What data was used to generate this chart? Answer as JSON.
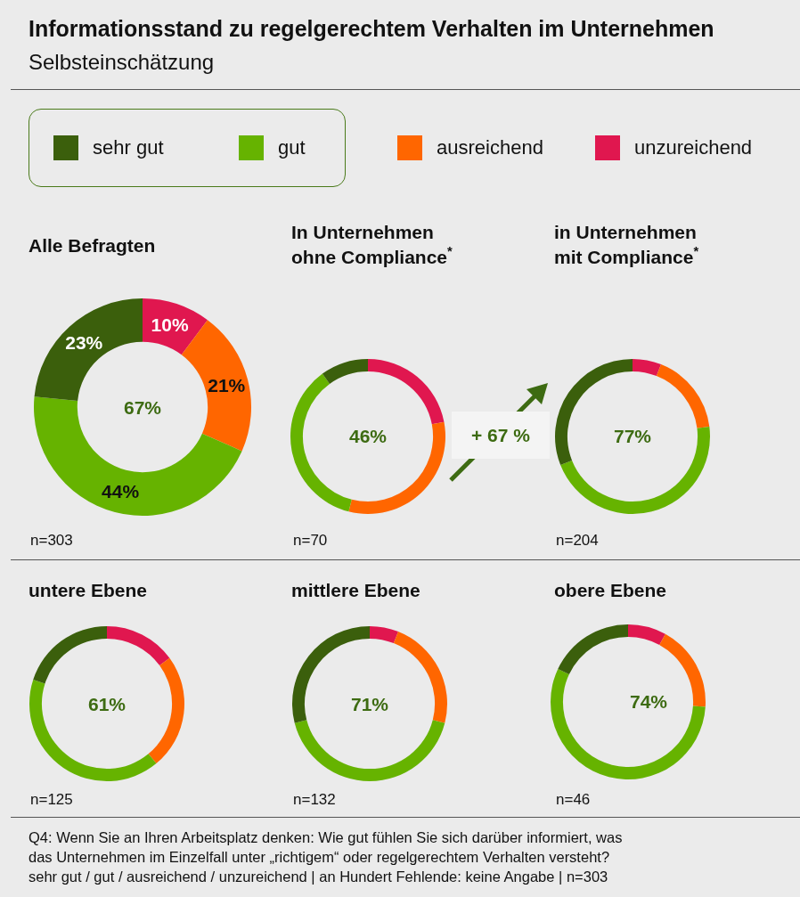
{
  "chart_data": [
    {
      "type": "donut",
      "title": "Alle Befragten",
      "categories": [
        "sehr gut",
        "gut",
        "ausreichend",
        "unzureichend"
      ],
      "values": [
        23,
        44,
        21,
        10
      ],
      "colors": [
        "#3b5f0c",
        "#66b300",
        "#ff6600",
        "#e0174f"
      ],
      "value_labels": [
        "23%",
        "44%",
        "21%",
        "10%"
      ],
      "legend": "top",
      "annotations": [
        "67%",
        "n=303",
        "Informationsstand zu regelgerechtem Verhalten im Unternehmen",
        "Selbsteinschätzung"
      ]
    },
    {
      "type": "donut",
      "title": "In Unternehmen\nohne Compliance$^{*}$",
      "categories": [
        null,
        null,
        null,
        null
      ],
      "values": [
        10,
        36,
        32,
        22
      ],
      "colors": [
        "#3b5f0c",
        "#66b300",
        "#ff6600",
        "#e0174f"
      ],
      "annotations": [
        "46%",
        "n=70"
      ]
    },
    {
      "type": "donut",
      "title": "in Unternehmen\nmit Compliance$^{*}$",
      "categories": [
        null,
        null,
        null,
        null
      ],
      "values": [
        31,
        46,
        17,
        6
      ],
      "colors": [
        "#3b5f0c",
        "#66b300",
        "#ff6600",
        "#e0174f"
      ],
      "annotations": [
        "77%",
        "n=204",
        "+ 67 %"
      ]
    },
    {
      "type": "donut",
      "title": "untere Ebene",
      "categories": [
        null,
        null,
        null,
        null
      ],
      "values": [
        20,
        41,
        24,
        15
      ],
      "colors": [
        "#3b5f0c",
        "#66b300",
        "#ff6600",
        "#e0174f"
      ],
      "annotations": [
        "61%",
        "n=125"
      ]
    },
    {
      "type": "donut",
      "title": "mittlere Ebene",
      "categories": [
        null,
        null,
        null,
        null
      ],
      "values": [
        29,
        42,
        23,
        6
      ],
      "colors": [
        "#3b5f0c",
        "#66b300",
        "#ff6600",
        "#e0174f"
      ],
      "annotations": [
        "71%",
        "n=132"
      ]
    },
    {
      "type": "donut",
      "title": "obere Ebene",
      "categories": [
        null,
        null,
        null,
        null
      ],
      "values": [
        18,
        56,
        18,
        8
      ],
      "colors": [
        "#3b5f0c",
        "#66b300",
        "#ff6600",
        "#e0174f"
      ],
      "annotations": [
        "74%",
        "n=46",
        "Q4: Wenn Sie an Ihren Arbeitsplatz denken: Wie gut fühlen Sie sich darüber informiert, was\ndas Unternehmen im Einzelfall unter „richtigem“ oder regelgerechtem Verhalten versteht?\nsehr gut / gut / ausreichend / unzureichend | an Hundert Fehlende: keine Angabe | n=303"
      ]
    }
  ]
}
